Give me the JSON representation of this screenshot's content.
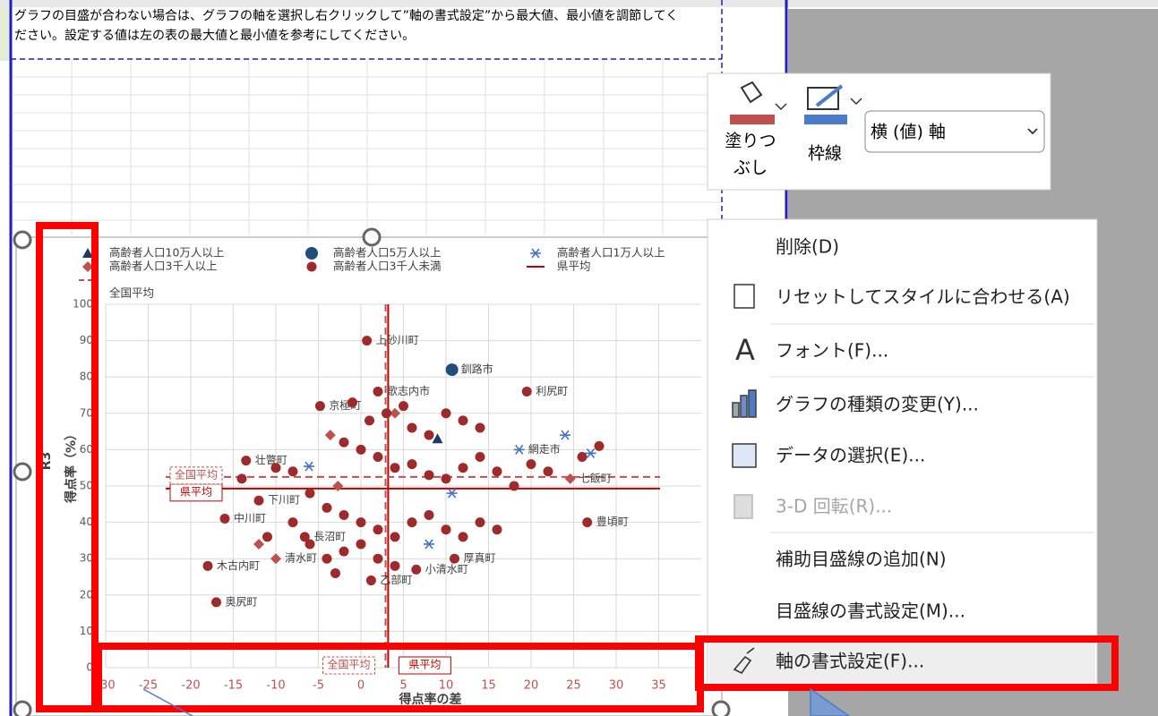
{
  "instruction": [
    "グラフの目盛が合わない場合は、グラフの軸を選択し右クリックして”軸の書式設定”から最大値、最小値を調節してく",
    "ださい。設定する値は左の表の最大値と最小値を参考にしてください。"
  ],
  "chart_data": {
    "type": "scatter",
    "side_label": "R3",
    "x_label": "得点率の差",
    "y_label": "得点率（%）",
    "xlim": [
      -30,
      40
    ],
    "xticks": [
      -30,
      -25,
      -20,
      -15,
      -10,
      -5,
      0,
      5,
      10,
      15,
      20,
      25,
      30,
      35
    ],
    "ylim": [
      0,
      100
    ],
    "yticks": [
      0,
      10,
      20,
      30,
      40,
      50,
      60,
      70,
      80,
      90,
      100
    ],
    "grid": true,
    "tick_color_x": "#c0504d",
    "series": [
      {
        "name": "高齢者人口10万人以上",
        "color": "#1f3864",
        "marker": "triangle",
        "x": [
          9
        ],
        "y": [
          63
        ],
        "labels": [
          null
        ]
      },
      {
        "name": "高齢者人口5万人以上",
        "color": "#1f4e79",
        "marker": "circle-large",
        "x": [
          10.7
        ],
        "y": [
          82
        ],
        "labels": [
          "釧路市"
        ]
      },
      {
        "name": "高齢者人口1万人以上",
        "color": "#4472c4",
        "marker": "asterisk",
        "x": [
          18.6,
          24,
          27,
          -6.1,
          10.7,
          8
        ],
        "y": [
          60,
          64,
          59,
          55.4,
          48,
          34
        ],
        "labels": [
          "網走市",
          null,
          null,
          null,
          null,
          null
        ]
      },
      {
        "name": "高齢者人口3千人以上",
        "color": "#c0504d",
        "marker": "diamond",
        "x": [
          -3.6,
          -10,
          24.6,
          -2.7,
          4,
          -12
        ],
        "y": [
          64,
          30,
          52,
          50,
          70,
          34
        ],
        "labels": [
          null,
          "清水町",
          "七飯町",
          null,
          null,
          null
        ]
      },
      {
        "name": "高齢者人口3千人未満",
        "color": "#9e2a2b",
        "marker": "circle",
        "x": [
          0.7,
          19.5,
          -4.8,
          -13.5,
          -12,
          -16,
          -18,
          -17,
          26.6,
          11,
          6.5,
          2,
          -6.6,
          1.2,
          -1,
          1,
          3,
          5,
          6,
          8,
          10,
          12,
          14,
          -2,
          0,
          2,
          4,
          6,
          8,
          10,
          12,
          14,
          16,
          18,
          20,
          22,
          -8,
          -10,
          -14,
          -6,
          -4,
          -2,
          0,
          2,
          4,
          6,
          8,
          10,
          12,
          14,
          16,
          -8,
          -6,
          -4,
          -2,
          0,
          2,
          4,
          -3,
          28,
          26,
          -11
        ],
        "y": [
          90,
          76,
          72,
          57,
          46,
          41,
          28,
          18,
          40,
          30,
          27,
          76,
          36,
          24,
          73,
          68,
          70,
          72,
          66,
          64,
          70,
          68,
          66,
          62,
          60,
          58,
          55,
          56,
          53,
          52,
          55,
          58,
          54,
          50,
          56,
          54,
          54,
          55,
          52,
          48,
          44,
          42,
          40,
          38,
          36,
          40,
          42,
          38,
          36,
          40,
          38,
          40,
          34,
          30,
          32,
          34,
          30,
          28,
          26,
          61,
          58,
          36
        ],
        "labels": [
          "上砂川町",
          "利尻町",
          "京極町",
          "壮瞥町",
          "下川町",
          "中川町",
          "木古内町",
          "奥尻町",
          "豊頃町",
          "厚真町",
          "小清水町",
          "歌志内市",
          "長沼町",
          "乙部町",
          null,
          null,
          null,
          null,
          null,
          null,
          null,
          null,
          null,
          null,
          null,
          null,
          null,
          null,
          null,
          null,
          null,
          null,
          null,
          null,
          null,
          null,
          null,
          null,
          null,
          null,
          null,
          null,
          null,
          null,
          null,
          null,
          null,
          null,
          null,
          null,
          null,
          null,
          null,
          null,
          null,
          null,
          null,
          null,
          null,
          null,
          null,
          null
        ]
      }
    ],
    "reference_lines": [
      {
        "name": "県平均",
        "color": "#c00000",
        "dashed": false,
        "x": 3.2,
        "y": 49.3
      },
      {
        "name": "全国平均",
        "color": "#c0504d",
        "dashed": true,
        "x": 2.9,
        "y": 52.5
      }
    ]
  },
  "toolbar": {
    "fill": [
      "塗りつ",
      "ぶし"
    ],
    "outline": "枠線",
    "dropdown": "横 (値) 軸"
  },
  "context_menu": [
    {
      "label": "削除(D)",
      "disabled": false,
      "highlighted": false
    },
    {
      "label": "リセットしてスタイルに合わせる(A)",
      "disabled": false,
      "highlighted": false
    },
    {
      "label": "フォント(F)...",
      "disabled": false,
      "highlighted": false
    },
    {
      "label": "グラフの種類の変更(Y)...",
      "disabled": false,
      "highlighted": false
    },
    {
      "label": "データの選択(E)...",
      "disabled": false,
      "highlighted": false
    },
    {
      "label": "3-D 回転(R)...",
      "disabled": true,
      "highlighted": false
    },
    {
      "label": "補助目盛線の追加(N)",
      "disabled": false,
      "highlighted": false
    },
    {
      "label": "目盛線の書式設定(M)...",
      "disabled": false,
      "highlighted": false
    },
    {
      "label": "軸の書式設定(F)...",
      "disabled": false,
      "highlighted": true
    }
  ]
}
